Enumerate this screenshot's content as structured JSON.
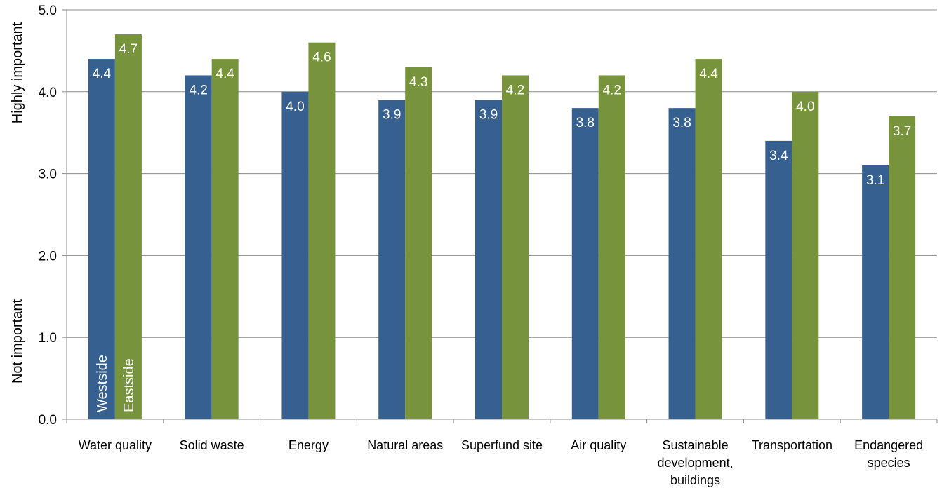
{
  "chart_data": {
    "type": "bar",
    "categories": [
      [
        "Water quality"
      ],
      [
        "Solid waste"
      ],
      [
        "Energy"
      ],
      [
        "Natural areas"
      ],
      [
        "Superfund site"
      ],
      [
        "Air quality"
      ],
      [
        "Sustainable",
        "development,",
        "buildings"
      ],
      [
        "Transportation"
      ],
      [
        "Endangered",
        "species"
      ]
    ],
    "series": [
      {
        "name": "Westside",
        "color": "#35608f",
        "values": [
          4.4,
          4.2,
          4.0,
          3.9,
          3.9,
          3.8,
          3.8,
          3.4,
          3.1
        ]
      },
      {
        "name": "Eastside",
        "color": "#77933c",
        "values": [
          4.7,
          4.4,
          4.6,
          4.3,
          4.2,
          4.2,
          4.4,
          4.0,
          3.7
        ]
      }
    ],
    "ylim": [
      0,
      5
    ],
    "yticks": [
      "0.0",
      "1.0",
      "2.0",
      "3.0",
      "4.0",
      "5.0"
    ],
    "ylabel_high": "Highly important",
    "ylabel_low": "Not important",
    "grid": true,
    "legend": "inside first category bars"
  }
}
